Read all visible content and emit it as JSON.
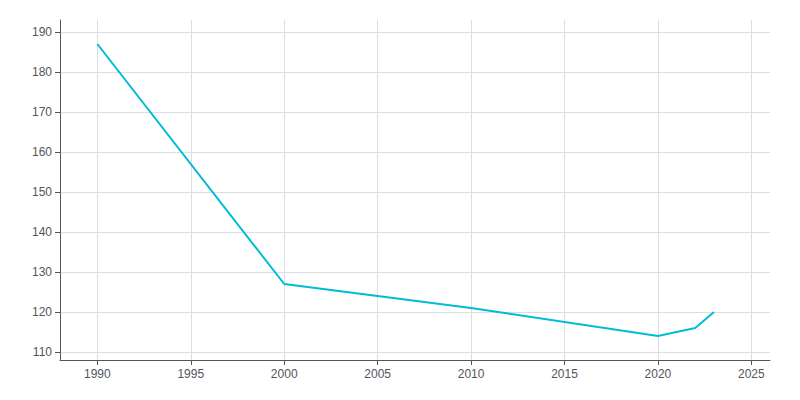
{
  "chart_data": {
    "type": "line",
    "x": [
      1990,
      2000,
      2005,
      2010,
      2020,
      2022,
      2023
    ],
    "values": [
      187,
      127,
      124,
      121,
      114,
      116,
      120
    ],
    "color": "#00bcd4",
    "xlim": [
      1988,
      2026
    ],
    "xticks": [
      1990,
      1995,
      2000,
      2005,
      2010,
      2015,
      2020,
      2025
    ],
    "ylim": [
      108,
      193
    ],
    "yticks": [
      110,
      120,
      130,
      140,
      150,
      160,
      170,
      180,
      190
    ],
    "grid": true
  }
}
